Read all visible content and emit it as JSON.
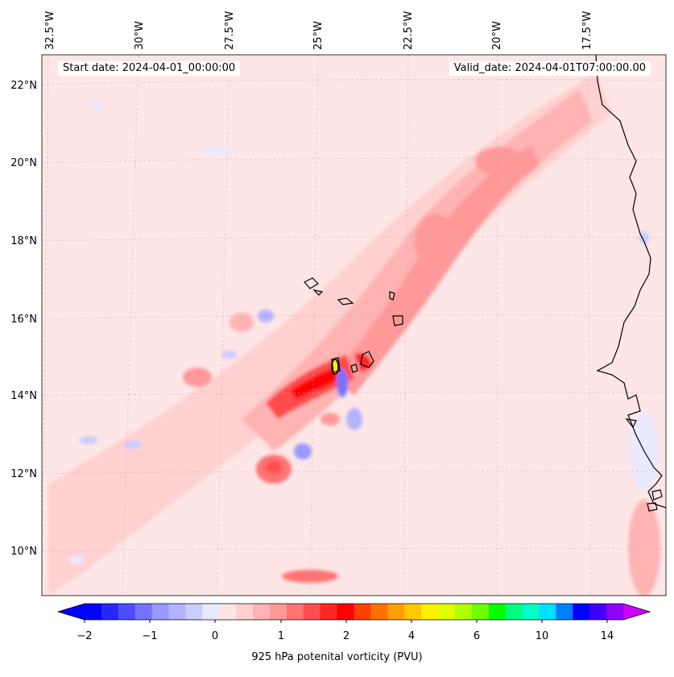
{
  "info": {
    "start_date": "Start date: 2024-04-01_00:00:00",
    "valid_date": "Valid_date: 2024-04-01T07:00:00.00"
  },
  "map": {
    "lon_labels": [
      "32.5°W",
      "30°W",
      "27.5°W",
      "25°W",
      "22.5°W",
      "20°W",
      "17.5°W"
    ],
    "lat_labels": [
      "22°N",
      "20°N",
      "18°N",
      "16°N",
      "14°N",
      "12°N",
      "10°N"
    ],
    "background_color": "#ffe6e6",
    "land_fill": "#ffeaea"
  },
  "colorbar": {
    "label": "925 hPa potenital vorticity (PVU)",
    "tick_labels": [
      "−2",
      "−1",
      "0",
      "1",
      "2",
      "4",
      "6",
      "10",
      "14"
    ],
    "colors": [
      "#0000ff",
      "#2626ff",
      "#4c4cff",
      "#7373ff",
      "#9999ff",
      "#b3b3ff",
      "#ccccff",
      "#eaeaff",
      "#ffe6e6",
      "#ffd0d0",
      "#ffb3b3",
      "#ff9999",
      "#ff7373",
      "#ff4c4c",
      "#ff2626",
      "#ff0000",
      "#ff4000",
      "#ff7000",
      "#ffa000",
      "#ffc800",
      "#fff000",
      "#e0ff00",
      "#b0ff00",
      "#70ff00",
      "#00ff00",
      "#00ff80",
      "#00ffc8",
      "#00e0ff",
      "#0080ff",
      "#0000ff",
      "#4000ff",
      "#9000ff"
    ],
    "extend_low": "#0000ff",
    "extend_high": "#cc00ff"
  }
}
